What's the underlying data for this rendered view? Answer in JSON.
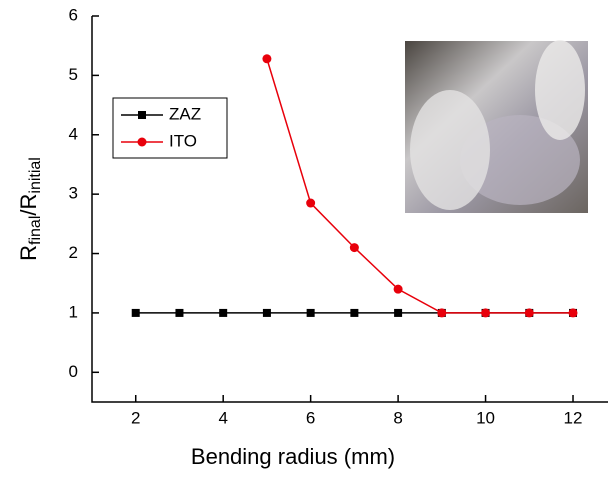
{
  "chart_data": {
    "type": "line",
    "xlabel": "Bending radius (mm)",
    "ylabel": [
      "R",
      "final",
      "/R",
      "initial"
    ],
    "xlim": [
      1,
      12.8
    ],
    "xticks": [
      2,
      4,
      6,
      8,
      10,
      12
    ],
    "ylim": [
      -0.5,
      6
    ],
    "yticks": [
      0,
      1,
      2,
      3,
      4,
      5,
      6
    ],
    "legend": "upper left",
    "series": [
      {
        "name": "ZAZ",
        "color": "#000000",
        "marker": "square",
        "x": [
          2,
          3,
          4,
          5,
          6,
          7,
          8,
          9,
          10,
          11,
          12
        ],
        "values": [
          1,
          1,
          1,
          1,
          1,
          1,
          1,
          1,
          1,
          1,
          1
        ]
      },
      {
        "name": "ITO",
        "color": "#e8000b",
        "marker": "circle",
        "x": [
          5,
          6,
          7,
          8,
          9,
          10,
          11,
          12
        ],
        "values": [
          5.28,
          2.85,
          2.1,
          1.4,
          1,
          1,
          1,
          1
        ]
      }
    ]
  }
}
